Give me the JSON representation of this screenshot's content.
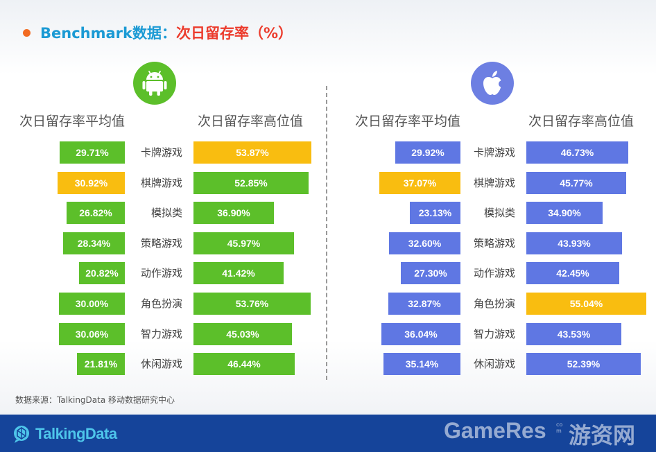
{
  "title": {
    "prefix": "Benchmark数据：",
    "highlight": "次日留存率（%）"
  },
  "source": "数据来源：TalkingData 移动数据研究中心",
  "footer": {
    "logo_text": "TalkingData",
    "watermark": "GameRes",
    "watermark_domain": "com",
    "watermark_cn": "游资网"
  },
  "colors": {
    "android": "#5cbf2a",
    "ios": "#5f77e3",
    "highlight": "#f9bd10",
    "title_blue": "#1b9ad4",
    "title_red": "#ec3b2c"
  },
  "icons": {
    "android": "android-icon",
    "ios": "apple-icon"
  },
  "chart_data": {
    "type": "bar",
    "categories": [
      "卡牌游戏",
      "棋牌游戏",
      "模拟类",
      "策略游戏",
      "动作游戏",
      "角色扮演",
      "智力游戏",
      "休闲游戏"
    ],
    "android": {
      "avg_header": "次日留存率平均值",
      "high_header": "次日留存率高位值",
      "avg": [
        29.71,
        30.92,
        26.82,
        28.34,
        20.82,
        30.0,
        30.06,
        21.81
      ],
      "high": [
        53.87,
        52.85,
        36.9,
        45.97,
        41.42,
        53.76,
        45.03,
        46.44
      ],
      "avg_labels": [
        "29.71%",
        "30.92%",
        "26.82%",
        "28.34%",
        "20.82%",
        "30.00%",
        "30.06%",
        "21.81%"
      ],
      "high_labels": [
        "53.87%",
        "52.85%",
        "36.90%",
        "45.97%",
        "41.42%",
        "53.76%",
        "45.03%",
        "46.44%"
      ],
      "avg_highlight": 1,
      "high_highlight": 0
    },
    "ios": {
      "avg_header": "次日留存率平均值",
      "high_header": "次日留存率高位值",
      "avg": [
        29.92,
        37.07,
        23.13,
        32.6,
        27.3,
        32.87,
        36.04,
        35.14
      ],
      "high": [
        46.73,
        45.77,
        34.9,
        43.93,
        42.45,
        55.04,
        43.53,
        52.39
      ],
      "avg_labels": [
        "29.92%",
        "37.07%",
        "23.13%",
        "32.60%",
        "27.30%",
        "32.87%",
        "36.04%",
        "35.14%"
      ],
      "high_labels": [
        "46.73%",
        "45.77%",
        "34.90%",
        "43.93%",
        "42.45%",
        "55.04%",
        "43.53%",
        "52.39%"
      ],
      "avg_highlight": 1,
      "high_highlight": 5
    }
  }
}
